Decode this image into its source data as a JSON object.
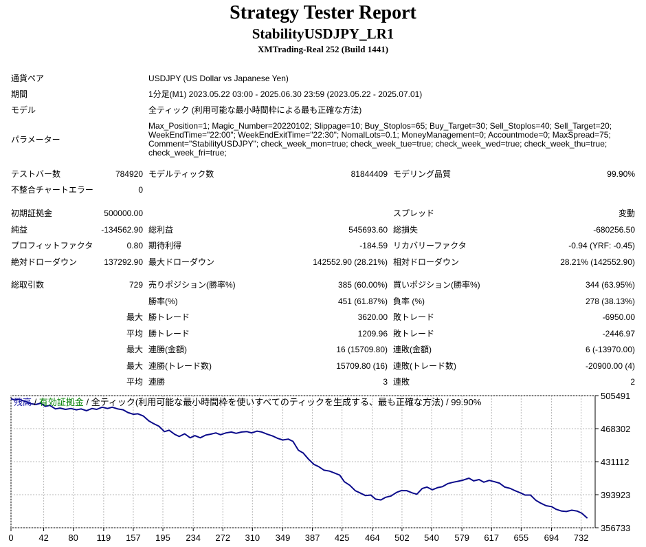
{
  "report": {
    "title": "Strategy Tester Report",
    "ea_name": "StabilityUSDJPY_LR1",
    "server": "XMTrading-Real 252 (Build 1441)"
  },
  "info": {
    "symbol_label": "通貨ペア",
    "symbol_value": "USDJPY (US Dollar vs Japanese Yen)",
    "period_label": "期間",
    "period_value": "1分足(M1) 2023.05.22 03:00 - 2025.06.30 23:59 (2023.05.22 - 2025.07.01)",
    "model_label": "モデル",
    "model_value": "全ティック (利用可能な最小時間枠による最も正確な方法)",
    "params_label": "パラメーター",
    "params_value": "Max_Position=1; Magic_Number=20220102; Slippage=10; Buy_Stoplos=65; Buy_Target=30; Sell_Stoplos=40; Sell_Target=20; WeekEndTime=\"22:00\"; WeekEndExitTime=\"22:30\"; NomalLots=0.1; MoneyManagement=0; Accountmode=0; MaxSpread=75; Comment=\"StabilityUSDJPY\"; check_week_mon=true; check_week_tue=true; check_week_wed=true; check_week_thu=true; check_week_fri=true;"
  },
  "bars": {
    "bars_label": "テストバー数",
    "bars_value": "784920",
    "ticks_label": "モデルティック数",
    "ticks_value": "81844409",
    "quality_label": "モデリング品質",
    "quality_value": "99.90%",
    "mismatch_label": "不整合チャートエラー",
    "mismatch_value": "0"
  },
  "summary": {
    "deposit_label": "初期証拠金",
    "deposit_value": "500000.00",
    "spread_label": "スプレッド",
    "spread_value": "変動",
    "net_label": "純益",
    "net_value": "-134562.90",
    "gross_profit_label": "総利益",
    "gross_profit_value": "545693.60",
    "gross_loss_label": "総損失",
    "gross_loss_value": "-680256.50",
    "pf_label": "プロフィットファクタ",
    "pf_value": "0.80",
    "payoff_label": "期待利得",
    "payoff_value": "-184.59",
    "recovery_label": "リカバリーファクタ",
    "recovery_value": "-0.94 (YRF: -0.45)",
    "abs_dd_label": "絶対ドローダウン",
    "abs_dd_value": "137292.90",
    "max_dd_label": "最大ドローダウン",
    "max_dd_value": "142552.90 (28.21%)",
    "rel_dd_label": "相対ドローダウン",
    "rel_dd_value": "28.21% (142552.90)"
  },
  "trades": {
    "total_label": "総取引数",
    "total_value": "729",
    "short_label": "売りポジション(勝率%)",
    "short_value": "385 (60.00%)",
    "long_label": "買いポジション(勝率%)",
    "long_value": "344 (63.95%)",
    "win_rate_label": "勝率(%)",
    "win_rate_value": "451 (61.87%)",
    "loss_rate_label": "負率 (%)",
    "loss_rate_value": "278 (38.13%)",
    "max_prefix": "最大",
    "avg_prefix": "平均",
    "largest_win_label": "勝トレード",
    "largest_win_value": "3620.00",
    "largest_loss_label": "敗トレード",
    "largest_loss_value": "-6950.00",
    "avg_win_label": "勝トレード",
    "avg_win_value": "1209.96",
    "avg_loss_label": "敗トレード",
    "avg_loss_value": "-2446.97",
    "max_consec_win_label": "連勝(金額)",
    "max_consec_win_value": "16 (15709.80)",
    "max_consec_loss_label": "連敗(金額)",
    "max_consec_loss_value": "6 (-13970.00)",
    "max_consec_profit_label": "連勝(トレード数)",
    "max_consec_profit_value": "15709.80 (16)",
    "max_consec_lossamt_label": "連敗(トレード数)",
    "max_consec_lossamt_value": "-20900.00 (4)",
    "avg_consec_win_label": "連勝",
    "avg_consec_win_value": "3",
    "avg_consec_loss_label": "連敗",
    "avg_consec_loss_value": "2"
  },
  "chart_data": {
    "type": "line",
    "legend_parts": [
      "残高",
      " / ",
      "有効証拠金",
      " / 全ティック(利用可能な最小時間枠を使いすべてのティックを生成する、最も正確な方法) / 99.90%"
    ],
    "legend_colors": [
      "#1a1aa6",
      "#000000",
      "#008000",
      "#000000"
    ],
    "line_color": "#0a0a8a",
    "grid": true,
    "x_ticks": [
      0,
      42,
      80,
      119,
      157,
      195,
      234,
      272,
      310,
      349,
      387,
      425,
      464,
      502,
      540,
      579,
      617,
      655,
      694,
      732
    ],
    "y_ticks": [
      505491,
      468302,
      431112,
      393923,
      356733
    ],
    "xlim": [
      0,
      750
    ],
    "ylim": [
      356733,
      505491
    ],
    "series": [
      {
        "x": [
          0,
          5,
          10,
          18,
          25,
          32,
          38,
          44,
          50,
          57,
          63,
          70,
          77,
          84,
          90,
          97,
          104,
          110,
          117,
          124,
          130,
          137,
          144,
          150,
          157,
          163,
          170,
          177,
          183,
          190,
          197,
          203,
          210,
          216,
          223,
          230,
          236,
          243,
          250,
          256,
          263,
          269,
          276,
          283,
          289,
          296,
          303,
          309,
          316,
          322,
          329,
          336,
          342,
          349,
          356,
          362,
          369,
          375,
          382,
          389,
          395,
          402,
          409,
          415,
          422,
          428,
          435,
          442,
          448,
          455,
          462,
          468,
          475,
          481,
          488,
          495,
          501,
          508,
          515,
          521,
          528,
          534,
          541,
          548,
          554,
          561,
          568,
          574,
          581,
          588,
          594,
          601,
          607,
          614,
          621,
          627,
          634,
          641,
          647,
          654,
          660,
          667,
          674,
          680,
          687,
          694,
          700,
          707,
          713,
          720,
          727,
          733,
          740
        ],
        "y": [
          502000,
          500500,
          501500,
          499000,
          496500,
          495500,
          497000,
          493500,
          494500,
          490500,
          491500,
          490000,
          491000,
          489500,
          490500,
          488500,
          491000,
          490000,
          492500,
          491000,
          492500,
          490500,
          489500,
          486500,
          484500,
          485000,
          482500,
          477000,
          474000,
          471000,
          465000,
          466500,
          462000,
          459500,
          462500,
          458000,
          460500,
          458000,
          461000,
          462000,
          463500,
          461500,
          463500,
          464500,
          463000,
          464500,
          465000,
          463500,
          465500,
          464500,
          462000,
          460000,
          457500,
          455500,
          456500,
          454000,
          444000,
          441000,
          434000,
          428000,
          425500,
          421500,
          420500,
          418500,
          416000,
          408500,
          404500,
          398500,
          396000,
          393000,
          393500,
          389000,
          388000,
          391000,
          392500,
          396500,
          398500,
          398500,
          396000,
          394500,
          401000,
          402500,
          399500,
          402000,
          403000,
          406500,
          408000,
          409000,
          410500,
          412500,
          409500,
          411000,
          408000,
          410000,
          408500,
          407000,
          402500,
          401000,
          398500,
          396000,
          393500,
          393500,
          387500,
          384500,
          381500,
          380500,
          377500,
          375500,
          375000,
          376500,
          375500,
          373000,
          367500
        ]
      }
    ]
  }
}
